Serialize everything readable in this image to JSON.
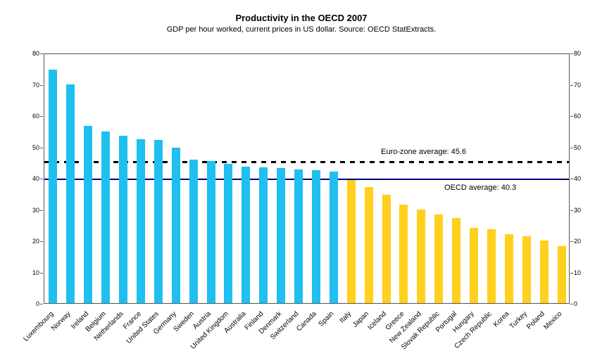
{
  "header": {
    "title": "Productivity in the OECD 2007",
    "subtitle": "GDP per hour worked, current prices in US dollar. Source: OECD StatExtracts."
  },
  "chart_data": {
    "type": "bar",
    "title": "Productivity in the OECD 2007",
    "subtitle": "GDP per hour worked, current prices in US dollar. Source: OECD StatExtracts.",
    "xlabel": "",
    "ylabel": "",
    "ylim": [
      0,
      80
    ],
    "yticks": [
      0,
      10,
      20,
      30,
      40,
      50,
      60,
      70,
      80
    ],
    "ytick_sides": "both",
    "grid": false,
    "legend": false,
    "colors": {
      "above_oecd_average": "#1FBFF0",
      "below_oecd_average": "#FFD01E",
      "oecd_line": "#000080",
      "eurozone_line": "#000000"
    },
    "reference_lines": [
      {
        "label": "Euro-zone average: 45.6",
        "value": 45.6,
        "style": "dashed",
        "color": "#000000"
      },
      {
        "label": "OECD average: 40.3",
        "value": 40.3,
        "style": "solid",
        "color": "#000080"
      }
    ],
    "bars": [
      {
        "country": "Luxembourg",
        "value": 74.5,
        "group": "above_oecd_average"
      },
      {
        "country": "Norway",
        "value": 70.0,
        "group": "above_oecd_average"
      },
      {
        "country": "Ireland",
        "value": 56.7,
        "group": "above_oecd_average"
      },
      {
        "country": "Belgium",
        "value": 54.9,
        "group": "above_oecd_average"
      },
      {
        "country": "Netherlands",
        "value": 53.4,
        "group": "above_oecd_average"
      },
      {
        "country": "France",
        "value": 52.4,
        "group": "above_oecd_average"
      },
      {
        "country": "United States",
        "value": 52.1,
        "group": "above_oecd_average"
      },
      {
        "country": "Germany",
        "value": 49.6,
        "group": "above_oecd_average"
      },
      {
        "country": "Sweden",
        "value": 45.9,
        "group": "above_oecd_average"
      },
      {
        "country": "Austria",
        "value": 45.5,
        "group": "above_oecd_average"
      },
      {
        "country": "United Kingdom",
        "value": 44.5,
        "group": "above_oecd_average"
      },
      {
        "country": "Australia",
        "value": 43.7,
        "group": "above_oecd_average"
      },
      {
        "country": "Finland",
        "value": 43.3,
        "group": "above_oecd_average"
      },
      {
        "country": "Denmark",
        "value": 43.1,
        "group": "above_oecd_average"
      },
      {
        "country": "Switzerland",
        "value": 42.8,
        "group": "above_oecd_average"
      },
      {
        "country": "Canada",
        "value": 42.5,
        "group": "above_oecd_average"
      },
      {
        "country": "Spain",
        "value": 42.0,
        "group": "above_oecd_average"
      },
      {
        "country": "Italy",
        "value": 39.3,
        "group": "below_oecd_average"
      },
      {
        "country": "Japan",
        "value": 37.1,
        "group": "below_oecd_average"
      },
      {
        "country": "Iceland",
        "value": 34.7,
        "group": "below_oecd_average"
      },
      {
        "country": "Greece",
        "value": 31.5,
        "group": "below_oecd_average"
      },
      {
        "country": "New Zealand",
        "value": 29.8,
        "group": "below_oecd_average"
      },
      {
        "country": "Slovak Republic",
        "value": 28.4,
        "group": "below_oecd_average"
      },
      {
        "country": "Portugal",
        "value": 27.1,
        "group": "below_oecd_average"
      },
      {
        "country": "Hungary",
        "value": 24.1,
        "group": "below_oecd_average"
      },
      {
        "country": "Czech Republic",
        "value": 23.7,
        "group": "below_oecd_average"
      },
      {
        "country": "Korea",
        "value": 22.1,
        "group": "below_oecd_average"
      },
      {
        "country": "Turkey",
        "value": 21.3,
        "group": "below_oecd_average"
      },
      {
        "country": "Poland",
        "value": 19.9,
        "group": "below_oecd_average"
      },
      {
        "country": "Mexico",
        "value": 18.2,
        "group": "below_oecd_average"
      }
    ]
  }
}
